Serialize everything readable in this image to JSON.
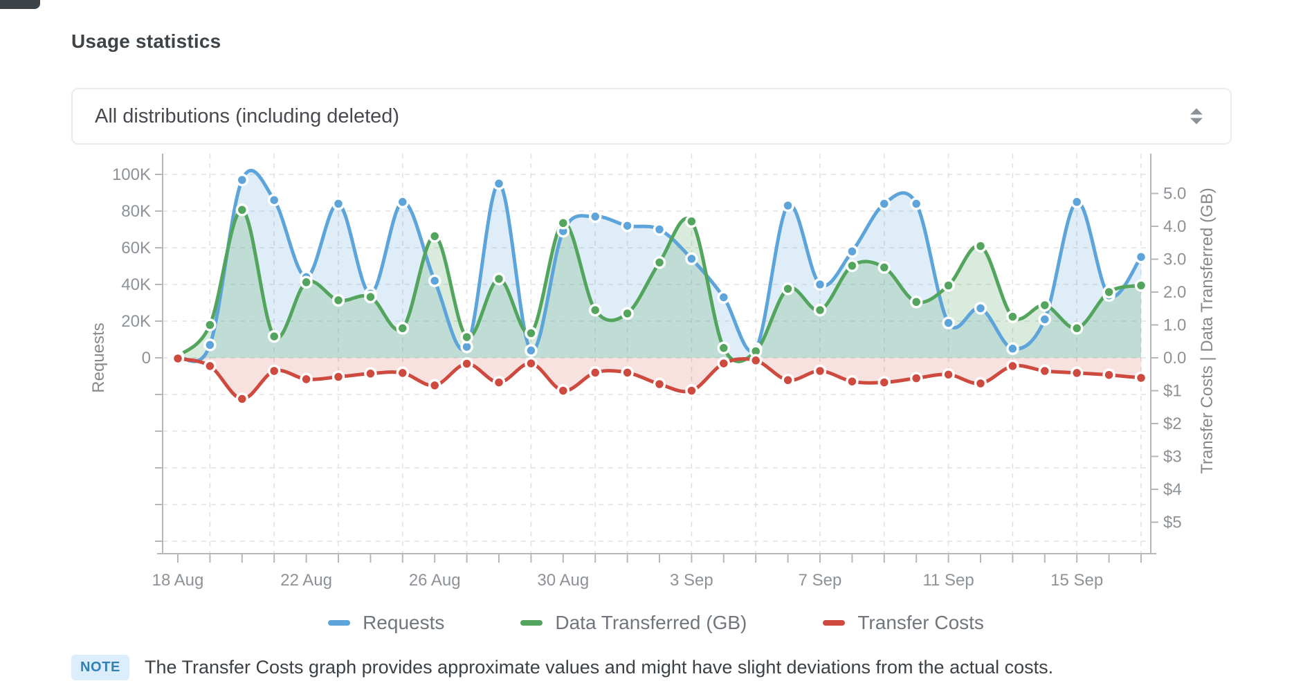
{
  "page": {
    "title": "Usage statistics"
  },
  "filter": {
    "value": "All distributions (including deleted)"
  },
  "legend": [
    {
      "label": "Requests",
      "color": "#5CA4D9"
    },
    {
      "label": "Data Transferred (GB)",
      "color": "#53A55E"
    },
    {
      "label": "Transfer Costs",
      "color": "#CE4A3F"
    }
  ],
  "note": {
    "badge": "NOTE",
    "text": "The Transfer Costs graph provides approximate values and might have slight deviations from the actual costs."
  },
  "chart_data": {
    "type": "line",
    "title": "Usage statistics",
    "x": [
      "18 Aug",
      "19 Aug",
      "20 Aug",
      "21 Aug",
      "22 Aug",
      "23 Aug",
      "24 Aug",
      "25 Aug",
      "26 Aug",
      "27 Aug",
      "28 Aug",
      "29 Aug",
      "30 Aug",
      "31 Aug",
      "1 Sep",
      "2 Sep",
      "3 Sep",
      "4 Sep",
      "5 Sep",
      "6 Sep",
      "7 Sep",
      "8 Sep",
      "9 Sep",
      "10 Sep",
      "11 Sep",
      "12 Sep",
      "13 Sep",
      "14 Sep",
      "15 Sep",
      "16 Sep",
      "17 Sep"
    ],
    "x_label_indices": [
      0,
      4,
      8,
      12,
      16,
      20,
      24,
      28
    ],
    "grid_vertical_indices": [
      1,
      3,
      5,
      7,
      9,
      11,
      13,
      14,
      16,
      18,
      20,
      22,
      24,
      26,
      28,
      30
    ],
    "series": [
      {
        "name": "Requests",
        "axis": "requests",
        "color": "#5CA4D9",
        "fill_opacity": 0.2,
        "values": [
          500,
          7000,
          97000,
          86000,
          44000,
          84000,
          35000,
          85000,
          42000,
          6000,
          95000,
          4000,
          69000,
          77000,
          72000,
          70000,
          54000,
          33000,
          5000,
          83000,
          40000,
          58000,
          84000,
          84000,
          19000,
          27000,
          5000,
          21000,
          85000,
          34000,
          55000
        ]
      },
      {
        "name": "Data Transferred (GB)",
        "axis": "gb",
        "color": "#53A55E",
        "fill_opacity": 0.22,
        "values": [
          0.05,
          1.0,
          4.5,
          0.65,
          2.3,
          1.75,
          1.85,
          0.9,
          3.7,
          0.63,
          2.4,
          0.75,
          4.1,
          1.45,
          1.35,
          2.9,
          4.15,
          0.3,
          0.2,
          2.1,
          1.45,
          2.8,
          2.75,
          1.7,
          2.2,
          3.4,
          1.25,
          1.6,
          0.9,
          2.0,
          2.2
        ]
      },
      {
        "name": "Transfer Costs",
        "axis": "cost_down",
        "color": "#CE4A3F",
        "fill_opacity": 0.16,
        "values": [
          0.02,
          0.25,
          1.25,
          0.4,
          0.65,
          0.58,
          0.48,
          0.46,
          0.84,
          0.18,
          0.75,
          0.17,
          1.0,
          0.45,
          0.45,
          0.8,
          1.0,
          0.17,
          0.08,
          0.68,
          0.4,
          0.72,
          0.75,
          0.62,
          0.51,
          0.78,
          0.25,
          0.4,
          0.46,
          0.52,
          0.61
        ]
      }
    ],
    "left_axis": {
      "label": "Requests",
      "ticks": [
        "0",
        "20K",
        "40K",
        "60K",
        "80K",
        "100K"
      ],
      "tick_step": 20000,
      "range_shown": [
        0,
        100000
      ]
    },
    "right_axis": {
      "label": "Transfer Costs | Data Transferred (GB)",
      "ticks_above_zero": [
        "0.0",
        "1.0",
        "2.0",
        "3.0",
        "4.0",
        "5.0"
      ],
      "ticks_below_zero": [
        "$1",
        "$2",
        "$3",
        "$4",
        "$5"
      ],
      "gb_range": [
        0,
        5
      ],
      "cost_range": [
        0,
        5
      ]
    },
    "grid": true,
    "legend_position": "bottom",
    "colors": {
      "gridline": "#e2e2e2",
      "axis_line": "#b3b8bb",
      "tick_label": "#8d9297",
      "axis_title": "#85898d"
    }
  }
}
